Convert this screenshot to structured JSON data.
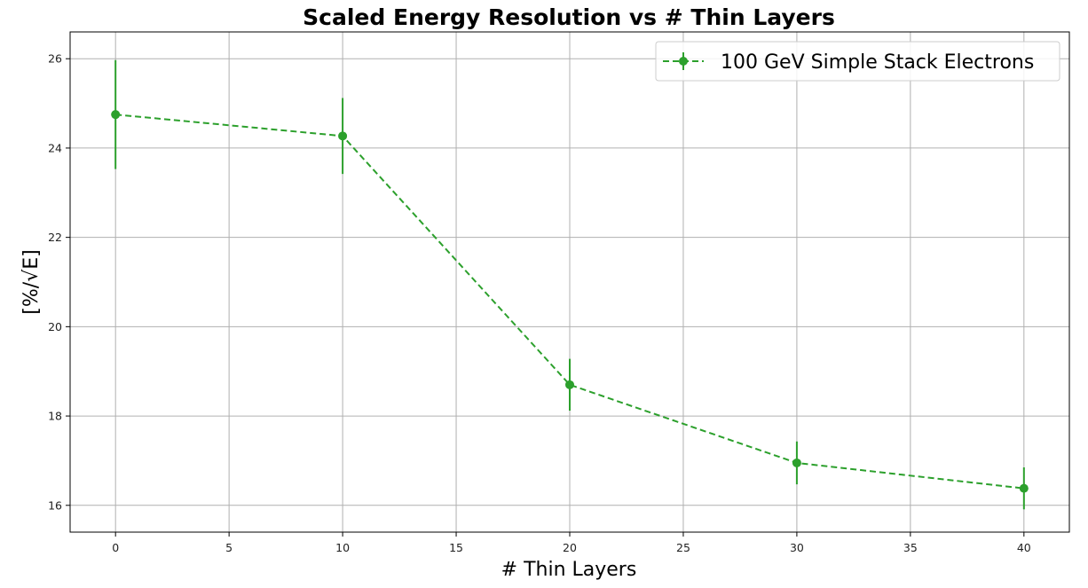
{
  "chart_data": {
    "type": "line",
    "title": "Scaled Energy Resolution vs # Thin Layers",
    "xlabel": "# Thin Layers",
    "ylabel": "[%/√E]",
    "xlim": [
      -2,
      42
    ],
    "ylim": [
      15.4,
      26.6
    ],
    "xticks": [
      0,
      5,
      10,
      15,
      20,
      25,
      30,
      35,
      40
    ],
    "yticks": [
      16,
      18,
      20,
      22,
      24,
      26
    ],
    "grid": true,
    "legend_position": "top-right",
    "series": [
      {
        "name": "100 GeV Simple Stack Electrons",
        "color": "#2ca02c",
        "line_style": "dashed",
        "marker": "circle",
        "x": [
          0,
          10,
          20,
          30,
          40
        ],
        "y": [
          24.75,
          24.27,
          18.7,
          16.95,
          16.38
        ],
        "yerr": [
          1.22,
          0.85,
          0.58,
          0.48,
          0.47
        ]
      }
    ]
  }
}
